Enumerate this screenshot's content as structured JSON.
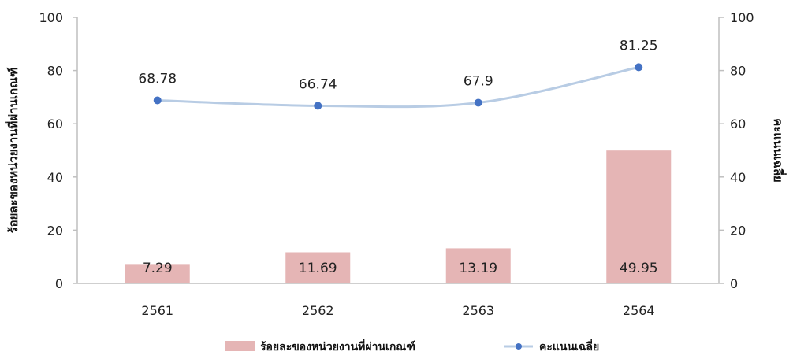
{
  "chart_data": {
    "type": "bar",
    "categories": [
      "2561",
      "2562",
      "2563",
      "2564"
    ],
    "series": [
      {
        "name": "ร้อยละของหน่วยงานที่ผ่านเกณฑ์",
        "type": "bar",
        "axis": "left",
        "values": [
          7.29,
          11.69,
          13.19,
          49.95
        ],
        "color": "#e5b5b5"
      },
      {
        "name": "คะแนนเฉลี่ย",
        "type": "line",
        "axis": "right",
        "values": [
          68.78,
          66.74,
          67.9,
          81.25
        ],
        "color": "#4472c4",
        "line_color": "#b8cce4"
      }
    ],
    "ylabel_left": "ร้อยละของหน่วยงานที่ผ่านเกณฑ์",
    "ylabel_right": "คะแนนเฉลี่ย",
    "ylim_left": [
      0,
      100
    ],
    "ylim_right": [
      0,
      100
    ],
    "yticks": [
      "0",
      "20",
      "40",
      "60",
      "80",
      "100"
    ],
    "grid": false,
    "legend_position": "bottom"
  }
}
